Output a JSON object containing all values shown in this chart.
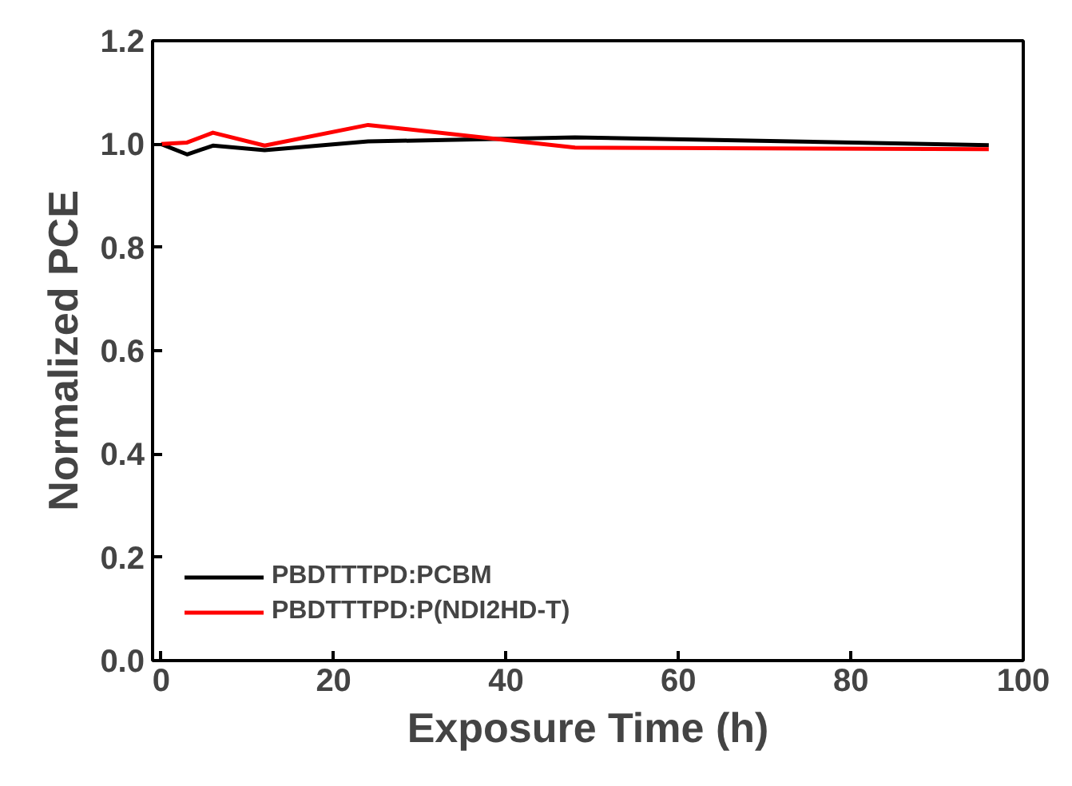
{
  "chart_data": {
    "type": "line",
    "xlabel": "Exposure Time (h)",
    "ylabel": "Normalized PCE",
    "xlim": [
      -1,
      100
    ],
    "ylim": [
      0,
      1.2
    ],
    "xticks": [
      0,
      20,
      40,
      60,
      80,
      100
    ],
    "yticks": [
      {
        "value": 0,
        "label": "0.0"
      },
      0.2,
      0.4,
      0.6,
      0.8,
      {
        "value": 1,
        "label": "1.0"
      },
      1.2
    ],
    "grid": false,
    "legend": "bottom left",
    "series": [
      {
        "name": "PBDTTTPD:PCBM",
        "color": "#000000",
        "x": [
          0,
          3,
          6,
          12,
          24,
          48,
          96
        ],
        "values": [
          1.0,
          0.98,
          0.997,
          0.988,
          1.005,
          1.013,
          0.998
        ]
      },
      {
        "name": "PBDTTTPD:P(NDI2HD-T)",
        "color": "#ff0000",
        "x": [
          0,
          3,
          6,
          12,
          24,
          48,
          96
        ],
        "values": [
          1.0,
          1.003,
          1.022,
          0.997,
          1.037,
          0.993,
          0.99
        ]
      }
    ]
  }
}
